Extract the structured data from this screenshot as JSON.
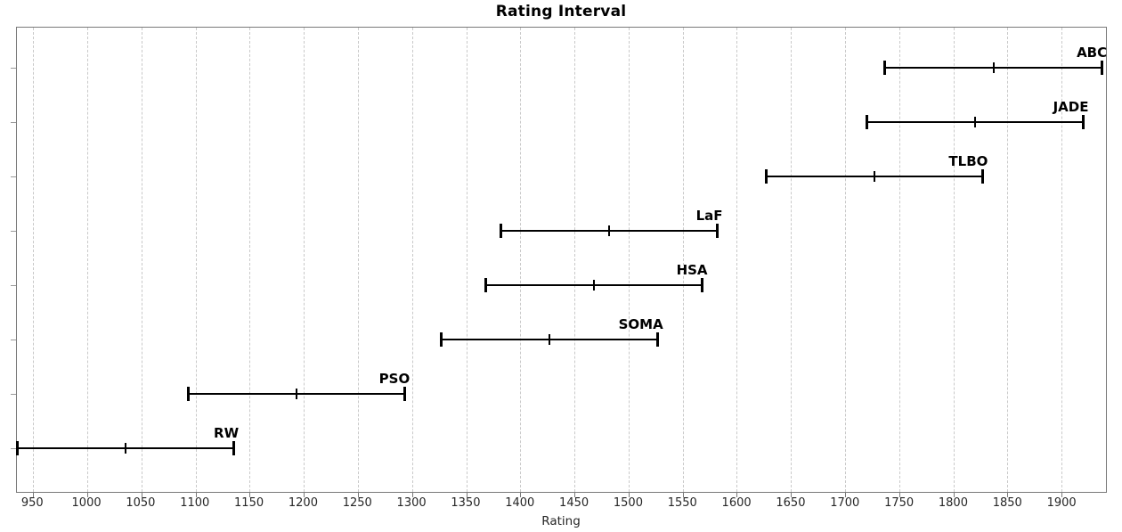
{
  "chart_data": {
    "type": "errorbar",
    "title": "Rating Interval",
    "xlabel": "Rating",
    "ylabel": "",
    "xlim": [
      935,
      1941
    ],
    "xticks": [
      950,
      1000,
      1050,
      1100,
      1150,
      1200,
      1250,
      1300,
      1350,
      1400,
      1450,
      1500,
      1550,
      1600,
      1650,
      1700,
      1750,
      1800,
      1850,
      1900
    ],
    "grid": "vertical dashed gridlines at every x tick",
    "legend": "none; each interval labeled inline above its right end",
    "series": [
      {
        "label": "ABC",
        "low": 1737,
        "mid": 1837,
        "high": 1937
      },
      {
        "label": "JADE",
        "low": 1720,
        "mid": 1820,
        "high": 1920
      },
      {
        "label": "TLBO",
        "low": 1627,
        "mid": 1727,
        "high": 1827
      },
      {
        "label": "LaF",
        "low": 1382,
        "mid": 1482,
        "high": 1582
      },
      {
        "label": "HSA",
        "low": 1368,
        "mid": 1468,
        "high": 1568
      },
      {
        "label": "SOMA",
        "low": 1327,
        "mid": 1427,
        "high": 1527
      },
      {
        "label": "PSO",
        "low": 1093,
        "mid": 1193,
        "high": 1293
      },
      {
        "label": "RW",
        "low": 935,
        "mid": 1035,
        "high": 1135
      }
    ],
    "colors": {
      "bar": "#000000",
      "grid": "#c9c9c9",
      "axis_border": "#7a7a7a",
      "tick_text": "#262626",
      "title_text": "#000000"
    }
  }
}
